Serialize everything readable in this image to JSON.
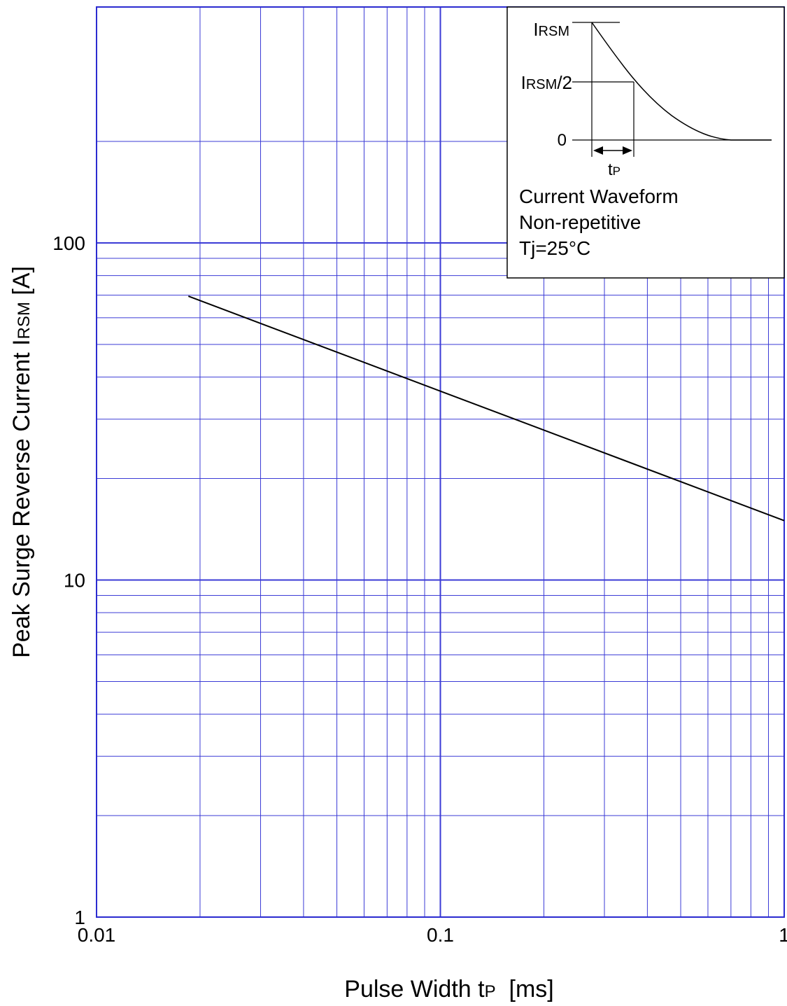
{
  "chart_data": {
    "type": "line",
    "x_scale": "log",
    "y_scale": "log",
    "xlim": [
      0.01,
      1
    ],
    "ylim": [
      1,
      300
    ],
    "grid": true,
    "grid_color": "#3b3bd6",
    "line_color": "#000000",
    "xlabel": {
      "main": "Pulse Width  t",
      "sub": "P",
      "unit": "  [ms]"
    },
    "ylabel": {
      "main": "Peak Surge Reverse Current  I",
      "sub": "RSM",
      "unit": " [A]"
    },
    "x_ticks": [
      {
        "value": 0.01,
        "label": "0.01"
      },
      {
        "value": 0.1,
        "label": "0.1"
      },
      {
        "value": 1,
        "label": "1"
      }
    ],
    "y_ticks": [
      {
        "value": 1,
        "label": "1"
      },
      {
        "value": 10,
        "label": "10"
      },
      {
        "value": 100,
        "label": "100"
      }
    ],
    "series": [
      {
        "x": [
          0.0185,
          1.0
        ],
        "y": [
          69.5,
          15.0
        ]
      }
    ]
  },
  "inset": {
    "irsm_main": "I",
    "irsm_sub": "RSM",
    "half_main": "I",
    "half_sub": "RSM",
    "half_suffix": "/2",
    "zero": "0",
    "tp_main": "t",
    "tp_sub": "P",
    "line1": "Current Waveform",
    "line2": "Non-repetitive",
    "line3": "Tj=25°C"
  }
}
